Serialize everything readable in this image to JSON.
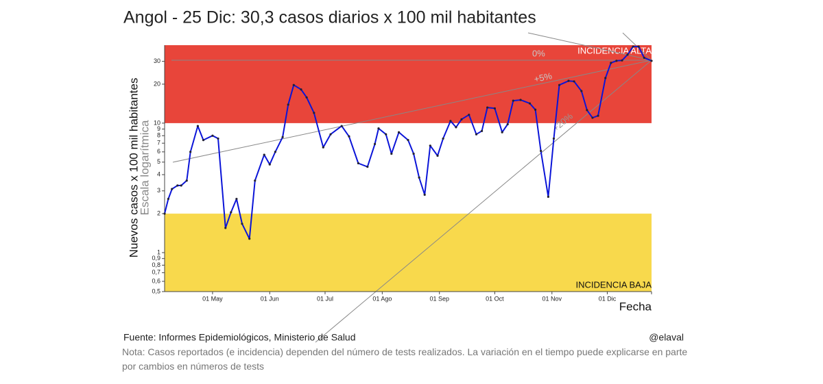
{
  "chart_data": {
    "type": "line",
    "log_scale": true,
    "title": "Angol - 25 Dic: 30,3 casos diarios x 100 mil habitantes",
    "ylabel": "Nuevos casos x 100 mil habitantes",
    "ylabel_sub": "Escala logarítmica",
    "xlabel": "Fecha",
    "x": [
      "04-05",
      "04-07",
      "04-09",
      "04-12",
      "04-14",
      "04-17",
      "04-19",
      "04-23",
      "04-26",
      "05-01",
      "05-04",
      "05-08",
      "05-11",
      "05-14",
      "05-17",
      "05-21",
      "05-24",
      "05-29",
      "06-01",
      "06-04",
      "06-08",
      "06-11",
      "06-14",
      "06-18",
      "06-21",
      "06-25",
      "06-30",
      "07-04",
      "07-10",
      "07-14",
      "07-19",
      "07-24",
      "07-28",
      "07-30",
      "08-03",
      "08-06",
      "08-10",
      "08-15",
      "08-18",
      "08-21",
      "08-24",
      "08-27",
      "08-31",
      "09-03",
      "09-07",
      "09-10",
      "09-13",
      "09-17",
      "09-21",
      "09-24",
      "09-27",
      "10-01",
      "10-05",
      "10-08",
      "10-11",
      "10-15",
      "10-20",
      "10-23",
      "10-26",
      "10-30",
      "11-02",
      "11-05",
      "11-10",
      "11-13",
      "11-17",
      "11-20",
      "11-23",
      "11-26",
      "11-30",
      "12-03",
      "12-06",
      "12-09",
      "12-12",
      "12-15",
      "12-18",
      "12-21",
      "12-25"
    ],
    "series": [
      {
        "name": "Nuevos casos",
        "color": "#0a14d8",
        "values": [
          2.0,
          2.6,
          3.1,
          3.3,
          3.3,
          3.6,
          6.0,
          9.5,
          7.4,
          8.0,
          7.6,
          1.55,
          2.05,
          2.6,
          1.67,
          1.28,
          3.6,
          5.7,
          4.8,
          6.0,
          7.8,
          13.9,
          19.7,
          18.2,
          15.8,
          12.0,
          6.5,
          8.2,
          9.5,
          7.9,
          4.9,
          4.6,
          6.9,
          9.1,
          8.2,
          5.8,
          8.5,
          7.4,
          5.8,
          3.8,
          2.8,
          6.7,
          5.6,
          7.6,
          10.4,
          9.3,
          10.7,
          11.6,
          8.2,
          8.7,
          13.2,
          13.0,
          8.5,
          9.8,
          14.9,
          15.1,
          14.2,
          12.7,
          6.1,
          2.7,
          7.6,
          19.7,
          21.2,
          21.0,
          17.7,
          12.6,
          11.0,
          11.4,
          22.3,
          29.2,
          30.3,
          30.5,
          33.8,
          39,
          39,
          32,
          30.3
        ]
      }
    ],
    "xlim": [
      "04-05",
      "12-25"
    ],
    "xticks": [
      {
        "value": "05-01",
        "label": "01 May"
      },
      {
        "value": "06-01",
        "label": "01 Jun"
      },
      {
        "value": "07-01",
        "label": "01 Jul"
      },
      {
        "value": "08-01",
        "label": "01 Ago"
      },
      {
        "value": "09-01",
        "label": "01 Sep"
      },
      {
        "value": "10-01",
        "label": "01 Oct"
      },
      {
        "value": "11-01",
        "label": "01 Nov"
      },
      {
        "value": "12-01",
        "label": "01 Dic"
      }
    ],
    "ylim": [
      0.5,
      40
    ],
    "yticks": [
      {
        "value": 0.5,
        "label": "0,5"
      },
      {
        "value": 0.6,
        "label": "0,6"
      },
      {
        "value": 0.7,
        "label": "0,7"
      },
      {
        "value": 0.8,
        "label": "0,8"
      },
      {
        "value": 0.9,
        "label": "0,9"
      },
      1,
      2,
      3,
      4,
      5,
      6,
      7,
      8,
      9,
      10,
      20,
      30
    ],
    "bands": [
      {
        "label": "INCIDENCIA ALTA",
        "from": 10,
        "to": 40,
        "color": "#e8453a"
      },
      {
        "label": "INCIDENCIA BAJA",
        "from": 0.5,
        "to": 2,
        "color": "#f8d94c"
      }
    ],
    "annotations": [
      "0%",
      "+5%",
      "+20%"
    ],
    "source": "Fuente: Informes Epidemiológicos, Ministerio de Salud",
    "author": "@elaval",
    "note": "Nota: Casos reportados (e incidencia) dependen del número de tests realizados. La variación en el tiempo puede explicarse en parte por cambios en números de tests"
  }
}
